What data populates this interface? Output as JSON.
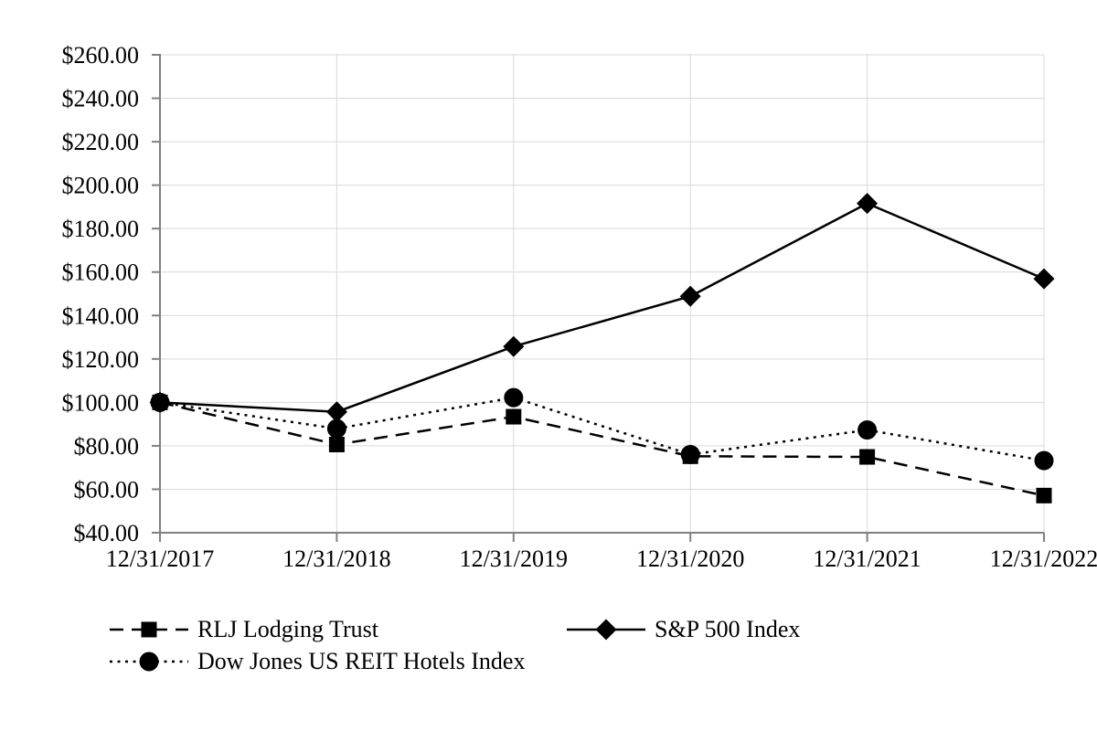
{
  "chart_data": {
    "type": "line",
    "title": "",
    "x_categories": [
      "12/31/2017",
      "12/31/2018",
      "12/31/2019",
      "12/31/2020",
      "12/31/2021",
      "12/31/2022"
    ],
    "y_axis": {
      "min": 40,
      "max": 260,
      "step": 20,
      "format": "currency",
      "tick_labels": [
        "$260.00",
        "$240.00",
        "$220.00",
        "$200.00",
        "$180.00",
        "$160.00",
        "$140.00",
        "$120.00",
        "$100.00",
        "$80.00",
        "$60.00",
        "$40.00"
      ]
    },
    "series": [
      {
        "name": "RLJ Lodging Trust",
        "line_style": "dashed",
        "marker": "square",
        "values": [
          100.0,
          80.6,
          93.4,
          75.2,
          74.9,
          57.1
        ]
      },
      {
        "name": "S&P 500 Index",
        "line_style": "solid",
        "marker": "diamond",
        "values": [
          100.0,
          95.62,
          125.72,
          148.85,
          191.58,
          156.89
        ]
      },
      {
        "name": "Dow Jones US REIT Hotels Index",
        "line_style": "dotted",
        "marker": "circle",
        "values": [
          100.0,
          87.9,
          102.2,
          76.0,
          87.3,
          73.2
        ]
      }
    ],
    "legend": {
      "position": "bottom-left",
      "columns": 2,
      "entries": [
        "RLJ Lodging Trust",
        "S&P 500 Index",
        "Dow Jones US REIT Hotels Index"
      ]
    },
    "layout": {
      "grid": "on",
      "series_color": "#000000",
      "gridline_color": "#d9d9d9",
      "axis_color": "#808080",
      "background_color": "#ffffff"
    }
  }
}
